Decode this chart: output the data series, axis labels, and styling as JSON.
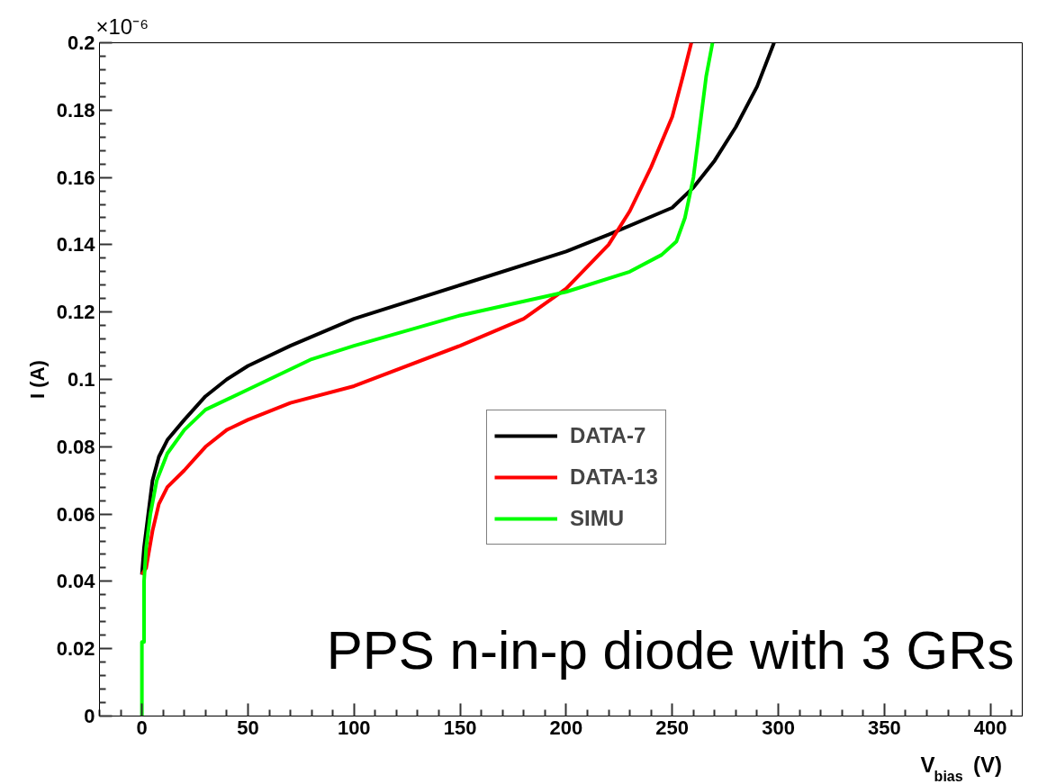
{
  "chart_data": {
    "type": "line",
    "xlabel": "V$_{bias}$ (V)",
    "ylabel": "I (A)",
    "xlim": [
      -20,
      415
    ],
    "ylim": [
      0,
      0.2
    ],
    "xticks": [
      0,
      50,
      100,
      150,
      200,
      250,
      300,
      350,
      400
    ],
    "yticks": [
      0,
      0.02,
      0.04,
      0.06,
      0.08,
      0.1,
      0.12,
      0.14,
      0.16,
      0.18,
      0.2
    ],
    "grid": false,
    "legend": "right",
    "line_style": "solid",
    "annotations": [
      "×10⁻⁶",
      "PPS n-in-p diode with 3 GRs"
    ],
    "series": [
      {
        "name": "DATA-7",
        "color": "#000000",
        "x": [
          0,
          1,
          3,
          5,
          8,
          12,
          20,
          30,
          40,
          50,
          70,
          100,
          150,
          200,
          220,
          250,
          260,
          270,
          280,
          290,
          298
        ],
        "values": [
          0.042,
          0.05,
          0.06,
          0.07,
          0.077,
          0.082,
          0.088,
          0.095,
          0.1,
          0.104,
          0.11,
          0.118,
          0.128,
          0.138,
          0.143,
          0.151,
          0.157,
          0.165,
          0.175,
          0.187,
          0.2
        ]
      },
      {
        "name": "DATA-13",
        "color": "#ff0000",
        "x": [
          0,
          2,
          5,
          8,
          12,
          20,
          30,
          40,
          50,
          70,
          100,
          150,
          180,
          200,
          220,
          230,
          240,
          250,
          255,
          259
        ],
        "values": [
          0.042,
          0.044,
          0.055,
          0.063,
          0.068,
          0.073,
          0.08,
          0.085,
          0.088,
          0.093,
          0.098,
          0.11,
          0.118,
          0.127,
          0.14,
          0.15,
          0.163,
          0.178,
          0.19,
          0.2
        ]
      },
      {
        "name": "SIMU",
        "color": "#00ff00",
        "x": [
          0,
          0,
          1,
          1,
          2,
          4,
          7,
          12,
          20,
          30,
          50,
          80,
          100,
          150,
          200,
          230,
          245,
          252,
          256,
          260,
          263,
          266,
          269
        ],
        "values": [
          0,
          0.022,
          0.022,
          0.04,
          0.05,
          0.06,
          0.07,
          0.078,
          0.085,
          0.091,
          0.097,
          0.106,
          0.11,
          0.119,
          0.126,
          0.132,
          0.137,
          0.141,
          0.148,
          0.16,
          0.175,
          0.19,
          0.2
        ]
      }
    ]
  }
}
